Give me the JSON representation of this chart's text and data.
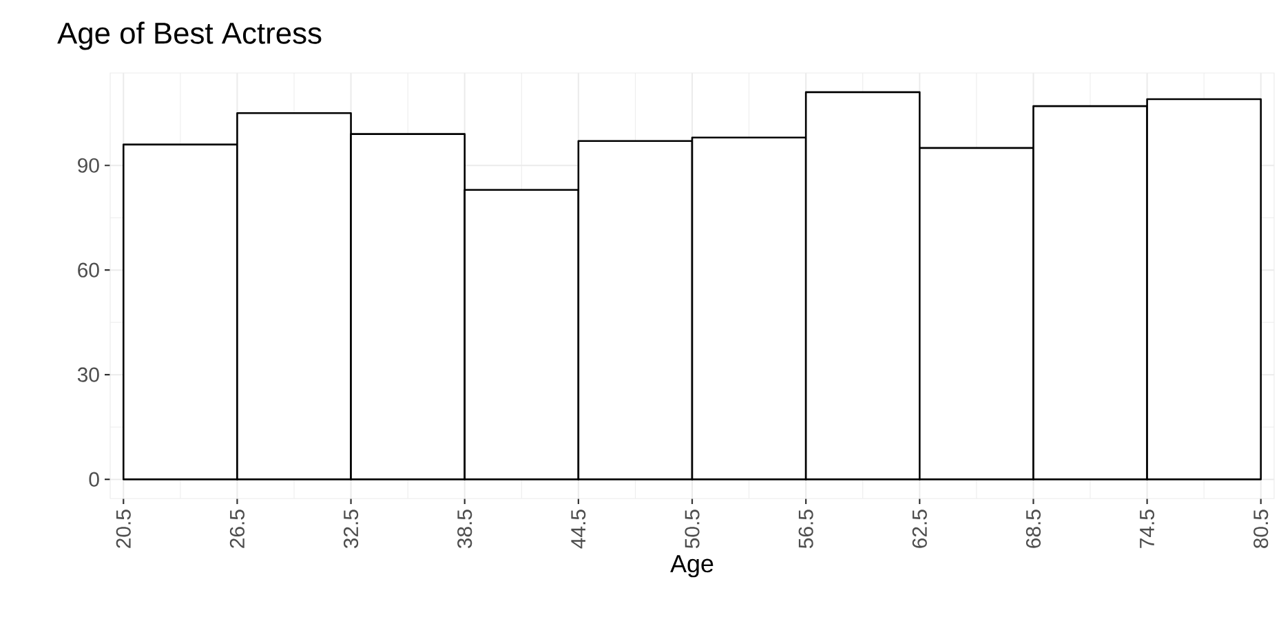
{
  "chart_data": {
    "type": "histogram",
    "title": "Age of Best Actress",
    "xlabel": "Age",
    "bins": [
      20.5,
      26.5,
      32.5,
      38.5,
      44.5,
      50.5,
      56.5,
      62.5,
      68.5,
      74.5,
      80.5
    ],
    "values": [
      96,
      105,
      99,
      83,
      97,
      98,
      111,
      95,
      107,
      109
    ],
    "color": "#ffffff",
    "xlim": [
      19.8,
      81.2
    ],
    "xticks": [
      20.5,
      26.5,
      32.5,
      38.5,
      44.5,
      50.5,
      56.5,
      62.5,
      68.5,
      74.5,
      80.5
    ],
    "ylim": [
      -5.5,
      116.5
    ],
    "yticks": [
      0,
      30,
      60,
      90
    ],
    "grid": true
  }
}
